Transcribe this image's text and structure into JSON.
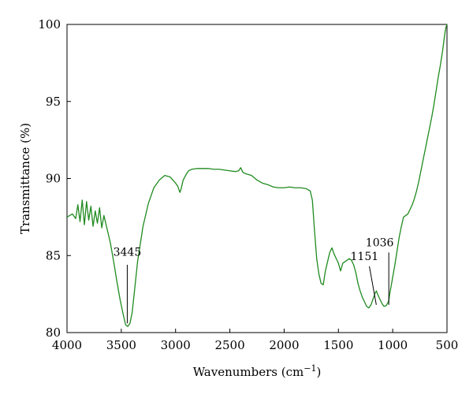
{
  "chart_data": {
    "type": "line",
    "xlabel": "Wavenumbers (cm",
    "xlabel_sup": "−1",
    "xlabel_close": ")",
    "ylabel": "Transmittance (%)",
    "xlim": [
      4000,
      500
    ],
    "ylim": [
      80,
      100
    ],
    "x_reversed": true,
    "x_ticks": [
      4000,
      3500,
      3000,
      2500,
      2000,
      1500,
      1000,
      500
    ],
    "y_ticks": [
      80,
      85,
      90,
      95,
      100
    ],
    "grid": false,
    "line_color": "#1f8a1f",
    "series": [
      {
        "x": [
          4000,
          3950,
          3920,
          3900,
          3880,
          3860,
          3840,
          3820,
          3800,
          3780,
          3760,
          3740,
          3720,
          3700,
          3680,
          3660,
          3640,
          3620,
          3600,
          3570,
          3540,
          3510,
          3480,
          3460,
          3440,
          3420,
          3400,
          3380,
          3350,
          3300,
          3250,
          3200,
          3150,
          3100,
          3050,
          3000,
          2980,
          2960,
          2950,
          2930,
          2900,
          2880,
          2850,
          2800,
          2750,
          2700,
          2650,
          2600,
          2550,
          2500,
          2450,
          2420,
          2400,
          2380,
          2350,
          2300,
          2250,
          2200,
          2150,
          2100,
          2050,
          2000,
          1950,
          1900,
          1850,
          1800,
          1760,
          1740,
          1720,
          1700,
          1680,
          1660,
          1640,
          1620,
          1600,
          1580,
          1560,
          1540,
          1520,
          1500,
          1480,
          1460,
          1440,
          1420,
          1400,
          1380,
          1360,
          1340,
          1320,
          1300,
          1280,
          1260,
          1240,
          1220,
          1200,
          1180,
          1160,
          1150,
          1140,
          1120,
          1100,
          1080,
          1060,
          1040,
          1036,
          1030,
          1020,
          1000,
          980,
          960,
          940,
          920,
          900,
          880,
          860,
          840,
          820,
          800,
          780,
          760,
          740,
          720,
          700,
          680,
          660,
          640,
          620,
          600,
          580,
          560,
          540,
          520,
          510,
          500
        ],
        "y": [
          87.5,
          87.7,
          87.4,
          88.3,
          87.2,
          88.6,
          87.0,
          88.5,
          87.3,
          88.2,
          86.9,
          87.9,
          87.1,
          88.1,
          86.8,
          87.6,
          87.0,
          86.4,
          85.8,
          84.6,
          83.3,
          82.1,
          81.1,
          80.5,
          80.4,
          80.6,
          81.3,
          82.6,
          84.6,
          86.9,
          88.4,
          89.4,
          89.9,
          90.2,
          90.1,
          89.7,
          89.5,
          89.1,
          89.3,
          89.9,
          90.3,
          90.5,
          90.6,
          90.65,
          90.65,
          90.65,
          90.6,
          90.6,
          90.55,
          90.5,
          90.45,
          90.5,
          90.7,
          90.4,
          90.3,
          90.2,
          89.9,
          89.7,
          89.6,
          89.45,
          89.4,
          89.4,
          89.45,
          89.4,
          89.4,
          89.35,
          89.2,
          88.6,
          86.6,
          84.8,
          83.8,
          83.2,
          83.1,
          84.0,
          84.6,
          85.2,
          85.5,
          85.1,
          84.8,
          84.5,
          84.0,
          84.5,
          84.6,
          84.7,
          84.8,
          84.7,
          84.4,
          83.9,
          83.2,
          82.7,
          82.3,
          82.0,
          81.7,
          81.6,
          81.8,
          82.2,
          82.6,
          82.7,
          82.5,
          82.2,
          81.9,
          81.7,
          81.75,
          82.0,
          82.1,
          82.4,
          82.8,
          83.6,
          84.4,
          85.3,
          86.2,
          86.9,
          87.5,
          87.6,
          87.7,
          88.0,
          88.3,
          88.7,
          89.2,
          89.8,
          90.5,
          91.2,
          91.9,
          92.6,
          93.3,
          94.0,
          94.8,
          95.7,
          96.6,
          97.4,
          98.3,
          99.4,
          99.8,
          100.0
        ]
      }
    ],
    "annotations": [
      {
        "label": "3445",
        "x": 3445,
        "y_bottom": 80.6,
        "y_top": 84.4,
        "text_x": 3445,
        "text_y": 85.0
      },
      {
        "label": "1151",
        "x": 1151,
        "y_bottom": 81.8,
        "y_top": 84.3,
        "text_x": 1260,
        "text_y": 84.7,
        "slant_to_x": 1215
      },
      {
        "label": "1036",
        "x": 1036,
        "y_bottom": 81.8,
        "y_top": 85.2,
        "text_x": 1120,
        "text_y": 85.6
      }
    ]
  }
}
